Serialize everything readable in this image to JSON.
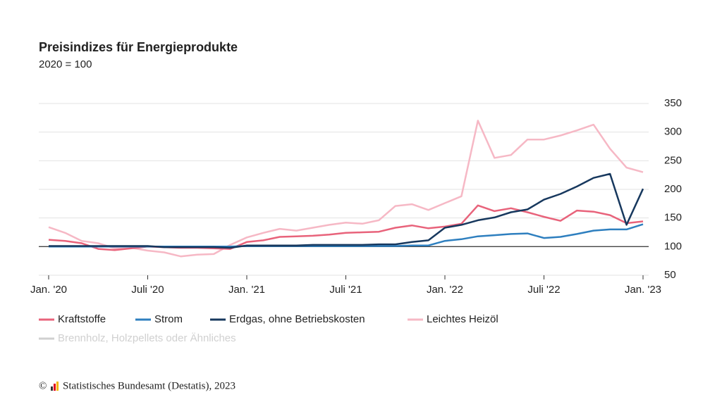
{
  "chart_data": {
    "type": "line",
    "title": "Preisindizes für Energieprodukte",
    "subtitle": "2020 = 100",
    "categories": [
      "Jan. '20",
      null,
      null,
      null,
      null,
      null,
      "Juli '20",
      null,
      null,
      null,
      null,
      null,
      "Jan. '21",
      null,
      null,
      null,
      null,
      null,
      "Juli '21",
      null,
      null,
      null,
      null,
      null,
      "Jan. '22",
      null,
      null,
      null,
      null,
      null,
      "Juli '22",
      null,
      null,
      null,
      null,
      null,
      "Jan. '23"
    ],
    "series": [
      {
        "name": "Kraftstoffe",
        "color": "#e8637b",
        "values": [
          112,
          110,
          106,
          96,
          94,
          97,
          100,
          99,
          98,
          98,
          97,
          96,
          108,
          111,
          117,
          118,
          119,
          121,
          124,
          125,
          126,
          133,
          137,
          132,
          135,
          140,
          172,
          162,
          167,
          160,
          152,
          145,
          163,
          161,
          155,
          141,
          144
        ]
      },
      {
        "name": "Strom",
        "color": "#2e7fbf",
        "values": [
          100,
          100,
          100,
          100,
          100,
          100,
          100,
          100,
          100,
          100,
          100,
          100,
          101,
          101,
          101,
          101,
          101,
          101,
          101,
          101,
          101,
          101,
          102,
          102,
          110,
          113,
          118,
          120,
          122,
          123,
          115,
          117,
          122,
          128,
          130,
          130,
          139
        ]
      },
      {
        "name": "Erdgas, ohne Betriebskosten",
        "color": "#17385e",
        "values": [
          101,
          101,
          101,
          101,
          101,
          101,
          101,
          99,
          99,
          99,
          99,
          98,
          102,
          102,
          102,
          102,
          103,
          103,
          103,
          103,
          104,
          104,
          108,
          111,
          133,
          138,
          146,
          151,
          160,
          165,
          182,
          192,
          205,
          220,
          227,
          138,
          201
        ]
      },
      {
        "name": "Leichtes Heizöl",
        "color": "#f6b8c5",
        "values": [
          134,
          124,
          110,
          106,
          97,
          98,
          93,
          90,
          83,
          86,
          87,
          103,
          116,
          124,
          131,
          128,
          133,
          138,
          142,
          140,
          146,
          171,
          174,
          164,
          176,
          188,
          320,
          255,
          260,
          287,
          287,
          294,
          303,
          313,
          271,
          238,
          230
        ]
      }
    ],
    "hidden_series": [
      {
        "name": "Brennholz, Holzpellets oder Ähnliches",
        "color": "#d0d0d0"
      }
    ],
    "ylim": [
      50,
      350
    ],
    "yticks": [
      50,
      100,
      150,
      200,
      250,
      300,
      350
    ],
    "baseline": 100,
    "grid": true,
    "source": "Statistisches Bundesamt (Destatis), 2023"
  }
}
